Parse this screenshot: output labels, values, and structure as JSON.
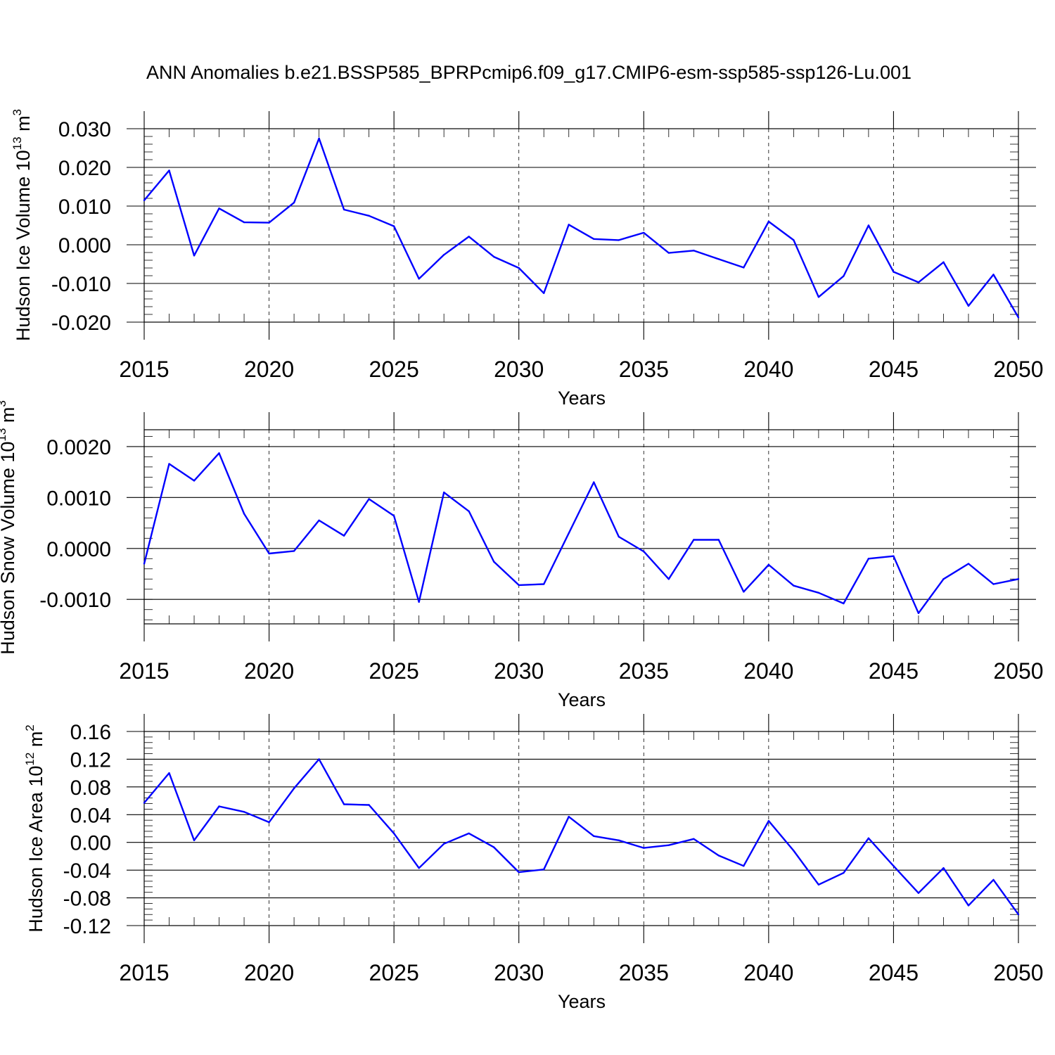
{
  "title": "ANN Anomalies b.e21.BSSP585_BPRPcmip6.f09_g17.CMIP6-esm-ssp585-ssp126-Lu.001",
  "line_color": "#0000ff",
  "chart_data": [
    {
      "type": "line",
      "title": "ANN Anomalies b.e21.BSSP585_BPRPcmip6.f09_g17.CMIP6-esm-ssp585-ssp126-Lu.001",
      "xlabel": "Years",
      "ylabel": "Hudson Ice Volume 10",
      "ylabel_sup": "13",
      "ylabel_unit": " m",
      "ylabel_unit_sup": "3",
      "xlim": [
        2015,
        2050
      ],
      "ylim": [
        -0.02,
        0.03
      ],
      "yticks": [
        -0.02,
        -0.01,
        0.0,
        0.01,
        0.02,
        0.03
      ],
      "ytick_labels": [
        "-0.020",
        "-0.010",
        "0.000",
        "0.010",
        "0.020",
        "0.030"
      ],
      "xticks": [
        2015,
        2020,
        2025,
        2030,
        2035,
        2040,
        2045,
        2050
      ],
      "xtick_labels": [
        "2015",
        "2020",
        "2025",
        "2030",
        "2035",
        "2040",
        "2045",
        "2050"
      ],
      "x": [
        2015,
        2016,
        2017,
        2018,
        2019,
        2020,
        2021,
        2022,
        2023,
        2024,
        2025,
        2026,
        2027,
        2028,
        2029,
        2030,
        2031,
        2032,
        2033,
        2034,
        2035,
        2036,
        2037,
        2038,
        2039,
        2040,
        2041,
        2042,
        2043,
        2044,
        2045,
        2046,
        2047,
        2048,
        2049,
        2050
      ],
      "values": [
        0.0115,
        0.0192,
        -0.0028,
        0.0094,
        0.0058,
        0.0057,
        0.0109,
        0.0275,
        0.0091,
        0.0075,
        0.0048,
        -0.0088,
        -0.0026,
        0.0021,
        -0.0031,
        -0.006,
        -0.0125,
        0.0052,
        0.0015,
        0.0012,
        0.0031,
        -0.0021,
        -0.0015,
        -0.0037,
        -0.0059,
        0.006,
        0.0012,
        -0.0135,
        -0.0081,
        0.005,
        -0.007,
        -0.0097,
        -0.0045,
        -0.0158,
        -0.0077,
        -0.0188
      ]
    },
    {
      "type": "line",
      "xlabel": "Years",
      "ylabel": "Hudson Snow Volume 10",
      "ylabel_sup": "13",
      "ylabel_unit": " m",
      "ylabel_unit_sup": "3",
      "xlim": [
        2015,
        2050
      ],
      "ylim": [
        -0.00148,
        0.00233
      ],
      "yticks": [
        -0.001,
        0.0,
        0.001,
        0.002
      ],
      "ytick_labels": [
        "-0.0010",
        "0.0000",
        "0.0010",
        "0.0020"
      ],
      "xticks": [
        2015,
        2020,
        2025,
        2030,
        2035,
        2040,
        2045,
        2050
      ],
      "xtick_labels": [
        "2015",
        "2020",
        "2025",
        "2030",
        "2035",
        "2040",
        "2045",
        "2050"
      ],
      "x": [
        2015,
        2016,
        2017,
        2018,
        2019,
        2020,
        2021,
        2022,
        2023,
        2024,
        2025,
        2026,
        2027,
        2028,
        2029,
        2030,
        2031,
        2032,
        2033,
        2034,
        2035,
        2036,
        2037,
        2038,
        2039,
        2040,
        2041,
        2042,
        2043,
        2044,
        2045,
        2046,
        2047,
        2048,
        2049,
        2050
      ],
      "values": [
        -0.0003,
        0.00166,
        0.00133,
        0.00187,
        0.00068,
        -0.0001,
        -5e-05,
        0.00055,
        0.00025,
        0.00097,
        0.00064,
        -0.00105,
        0.0011,
        0.00073,
        -0.00026,
        -0.00072,
        -0.0007,
        0.0003,
        0.0013,
        0.00023,
        -6e-05,
        -0.0006,
        0.00017,
        0.00017,
        -0.00085,
        -0.00032,
        -0.00073,
        -0.00087,
        -0.00108,
        -0.0002,
        -0.00015,
        -0.00127,
        -0.0006,
        -0.0003,
        -0.0007,
        -0.0006
      ]
    },
    {
      "type": "line",
      "xlabel": "Years",
      "ylabel": "Hudson Ice Area 10",
      "ylabel_sup": "12",
      "ylabel_unit": " m",
      "ylabel_unit_sup": "2",
      "xlim": [
        2015,
        2050
      ],
      "ylim": [
        -0.12,
        0.16
      ],
      "yticks": [
        -0.12,
        -0.08,
        -0.04,
        0.0,
        0.04,
        0.08,
        0.12,
        0.16
      ],
      "ytick_labels": [
        "-0.12",
        "-0.08",
        "-0.04",
        "0.00",
        "0.04",
        "0.08",
        "0.12",
        "0.16"
      ],
      "xticks": [
        2015,
        2020,
        2025,
        2030,
        2035,
        2040,
        2045,
        2050
      ],
      "xtick_labels": [
        "2015",
        "2020",
        "2025",
        "2030",
        "2035",
        "2040",
        "2045",
        "2050"
      ],
      "x": [
        2015,
        2016,
        2017,
        2018,
        2019,
        2020,
        2021,
        2022,
        2023,
        2024,
        2025,
        2026,
        2027,
        2028,
        2029,
        2030,
        2031,
        2032,
        2033,
        2034,
        2035,
        2036,
        2037,
        2038,
        2039,
        2040,
        2041,
        2042,
        2043,
        2044,
        2045,
        2046,
        2047,
        2048,
        2049,
        2050
      ],
      "values": [
        0.057,
        0.1,
        0.003,
        0.052,
        0.044,
        0.029,
        0.078,
        0.12,
        0.055,
        0.054,
        0.013,
        -0.037,
        -0.002,
        0.013,
        -0.007,
        -0.043,
        -0.039,
        0.037,
        0.009,
        0.003,
        -0.008,
        -0.004,
        0.005,
        -0.019,
        -0.034,
        0.031,
        -0.012,
        -0.061,
        -0.044,
        0.006,
        -0.034,
        -0.073,
        -0.037,
        -0.091,
        -0.054,
        -0.104
      ]
    }
  ]
}
